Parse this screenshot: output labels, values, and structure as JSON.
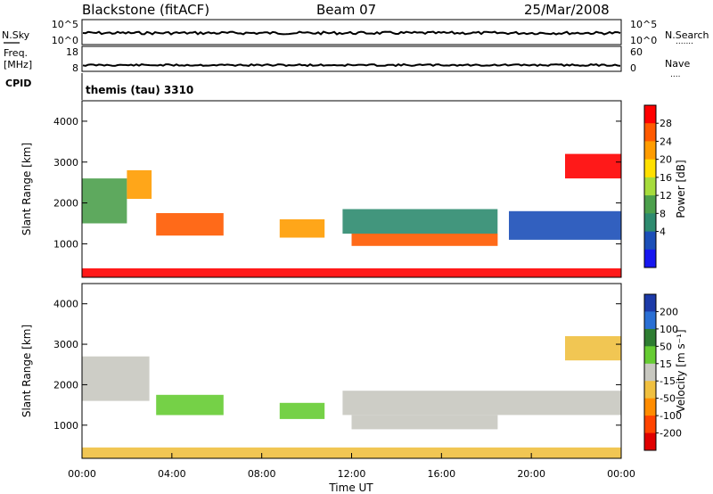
{
  "header": {
    "station": "Blackstone (fitACF)",
    "beam": "Beam 07",
    "date": "25/Mar/2008"
  },
  "nsky_panel": {
    "left_label": "N.Sky",
    "left_ticks": [
      "10^5",
      "10^0"
    ],
    "right_label": "N.Search",
    "right_ticks": [
      "10^5",
      "10^0"
    ],
    "right_legend": "......."
  },
  "freq_panel": {
    "left_label_1": "Freq.",
    "left_label_2": "[MHz]",
    "left_ticks": [
      "18",
      "8"
    ],
    "right_label": "Nave",
    "right_ticks": [
      "60",
      "0"
    ],
    "right_legend": "...."
  },
  "cpid": {
    "label": "CPID",
    "text": "themis (tau) 3310"
  },
  "chart_data": [
    {
      "type": "heatmap",
      "name": "power",
      "ylabel": "Slant Range [km]",
      "xlabel": "",
      "yticks": [
        "1000",
        "2000",
        "3000",
        "4000"
      ],
      "ylim": [
        180,
        4500
      ],
      "xlim": [
        0,
        24
      ],
      "colorbar_label": "Power [dB]",
      "colorbar_ticks": [
        "28",
        "24",
        "20",
        "16",
        "12",
        "8",
        "4"
      ],
      "colorbar_colors": [
        "#ff0000",
        "#ff5a00",
        "#ff9c00",
        "#ffe000",
        "#a6dc3c",
        "#4ca04c",
        "#2e8b6f",
        "#1c4fb8",
        "#1717f0"
      ],
      "regions": [
        {
          "x0": 0.0,
          "x1": 2.0,
          "y0": 1500,
          "y1": 2600,
          "level": 5
        },
        {
          "x0": 2.0,
          "x1": 3.1,
          "y0": 2100,
          "y1": 2800,
          "level": 2
        },
        {
          "x0": 3.3,
          "x1": 6.3,
          "y0": 1200,
          "y1": 1750,
          "level": 1
        },
        {
          "x0": 8.8,
          "x1": 10.8,
          "y0": 1150,
          "y1": 1600,
          "level": 2
        },
        {
          "x0": 11.6,
          "x1": 18.5,
          "y0": 1250,
          "y1": 1850,
          "level": 6
        },
        {
          "x0": 12.0,
          "x1": 18.5,
          "y0": 950,
          "y1": 1250,
          "level": 1
        },
        {
          "x0": 19.0,
          "x1": 24.0,
          "y0": 1100,
          "y1": 1800,
          "level": 7
        },
        {
          "x0": 21.5,
          "x1": 24.0,
          "y0": 2600,
          "y1": 3200,
          "level": 0
        },
        {
          "x0": 0.0,
          "x1": 24.0,
          "y0": 180,
          "y1": 400,
          "level": 0
        }
      ]
    },
    {
      "type": "heatmap",
      "name": "velocity",
      "ylabel": "Slant Range [km]",
      "xlabel": "Time UT",
      "xticks": [
        "00:00",
        "04:00",
        "08:00",
        "12:00",
        "16:00",
        "20:00",
        "00:00"
      ],
      "yticks": [
        "1000",
        "2000",
        "3000",
        "4000"
      ],
      "ylim": [
        180,
        4500
      ],
      "xlim": [
        0,
        24
      ],
      "colorbar_label": "Velocity [m s⁻¹]",
      "colorbar_ticks": [
        "200",
        "100",
        "50",
        "15",
        "-15",
        "-50",
        "-100",
        "-200"
      ],
      "colorbar_colors": [
        "#1c3aa8",
        "#2a6fd4",
        "#2e7d32",
        "#66cc33",
        "#c8c8c0",
        "#f0c040",
        "#ff8c00",
        "#ff4400",
        "#e00000"
      ],
      "regions": [
        {
          "x0": 0.0,
          "x1": 3.0,
          "y0": 1600,
          "y1": 2700,
          "level": 4
        },
        {
          "x0": 3.3,
          "x1": 6.3,
          "y0": 1250,
          "y1": 1750,
          "level": 3
        },
        {
          "x0": 8.8,
          "x1": 10.8,
          "y0": 1150,
          "y1": 1550,
          "level": 3
        },
        {
          "x0": 11.6,
          "x1": 24.0,
          "y0": 1250,
          "y1": 1850,
          "level": 4
        },
        {
          "x0": 12.0,
          "x1": 18.5,
          "y0": 900,
          "y1": 1250,
          "level": 4
        },
        {
          "x0": 21.5,
          "x1": 24.0,
          "y0": 2600,
          "y1": 3200,
          "level": 5
        },
        {
          "x0": 0.0,
          "x1": 24.0,
          "y0": 180,
          "y1": 450,
          "level": 5
        }
      ]
    }
  ]
}
